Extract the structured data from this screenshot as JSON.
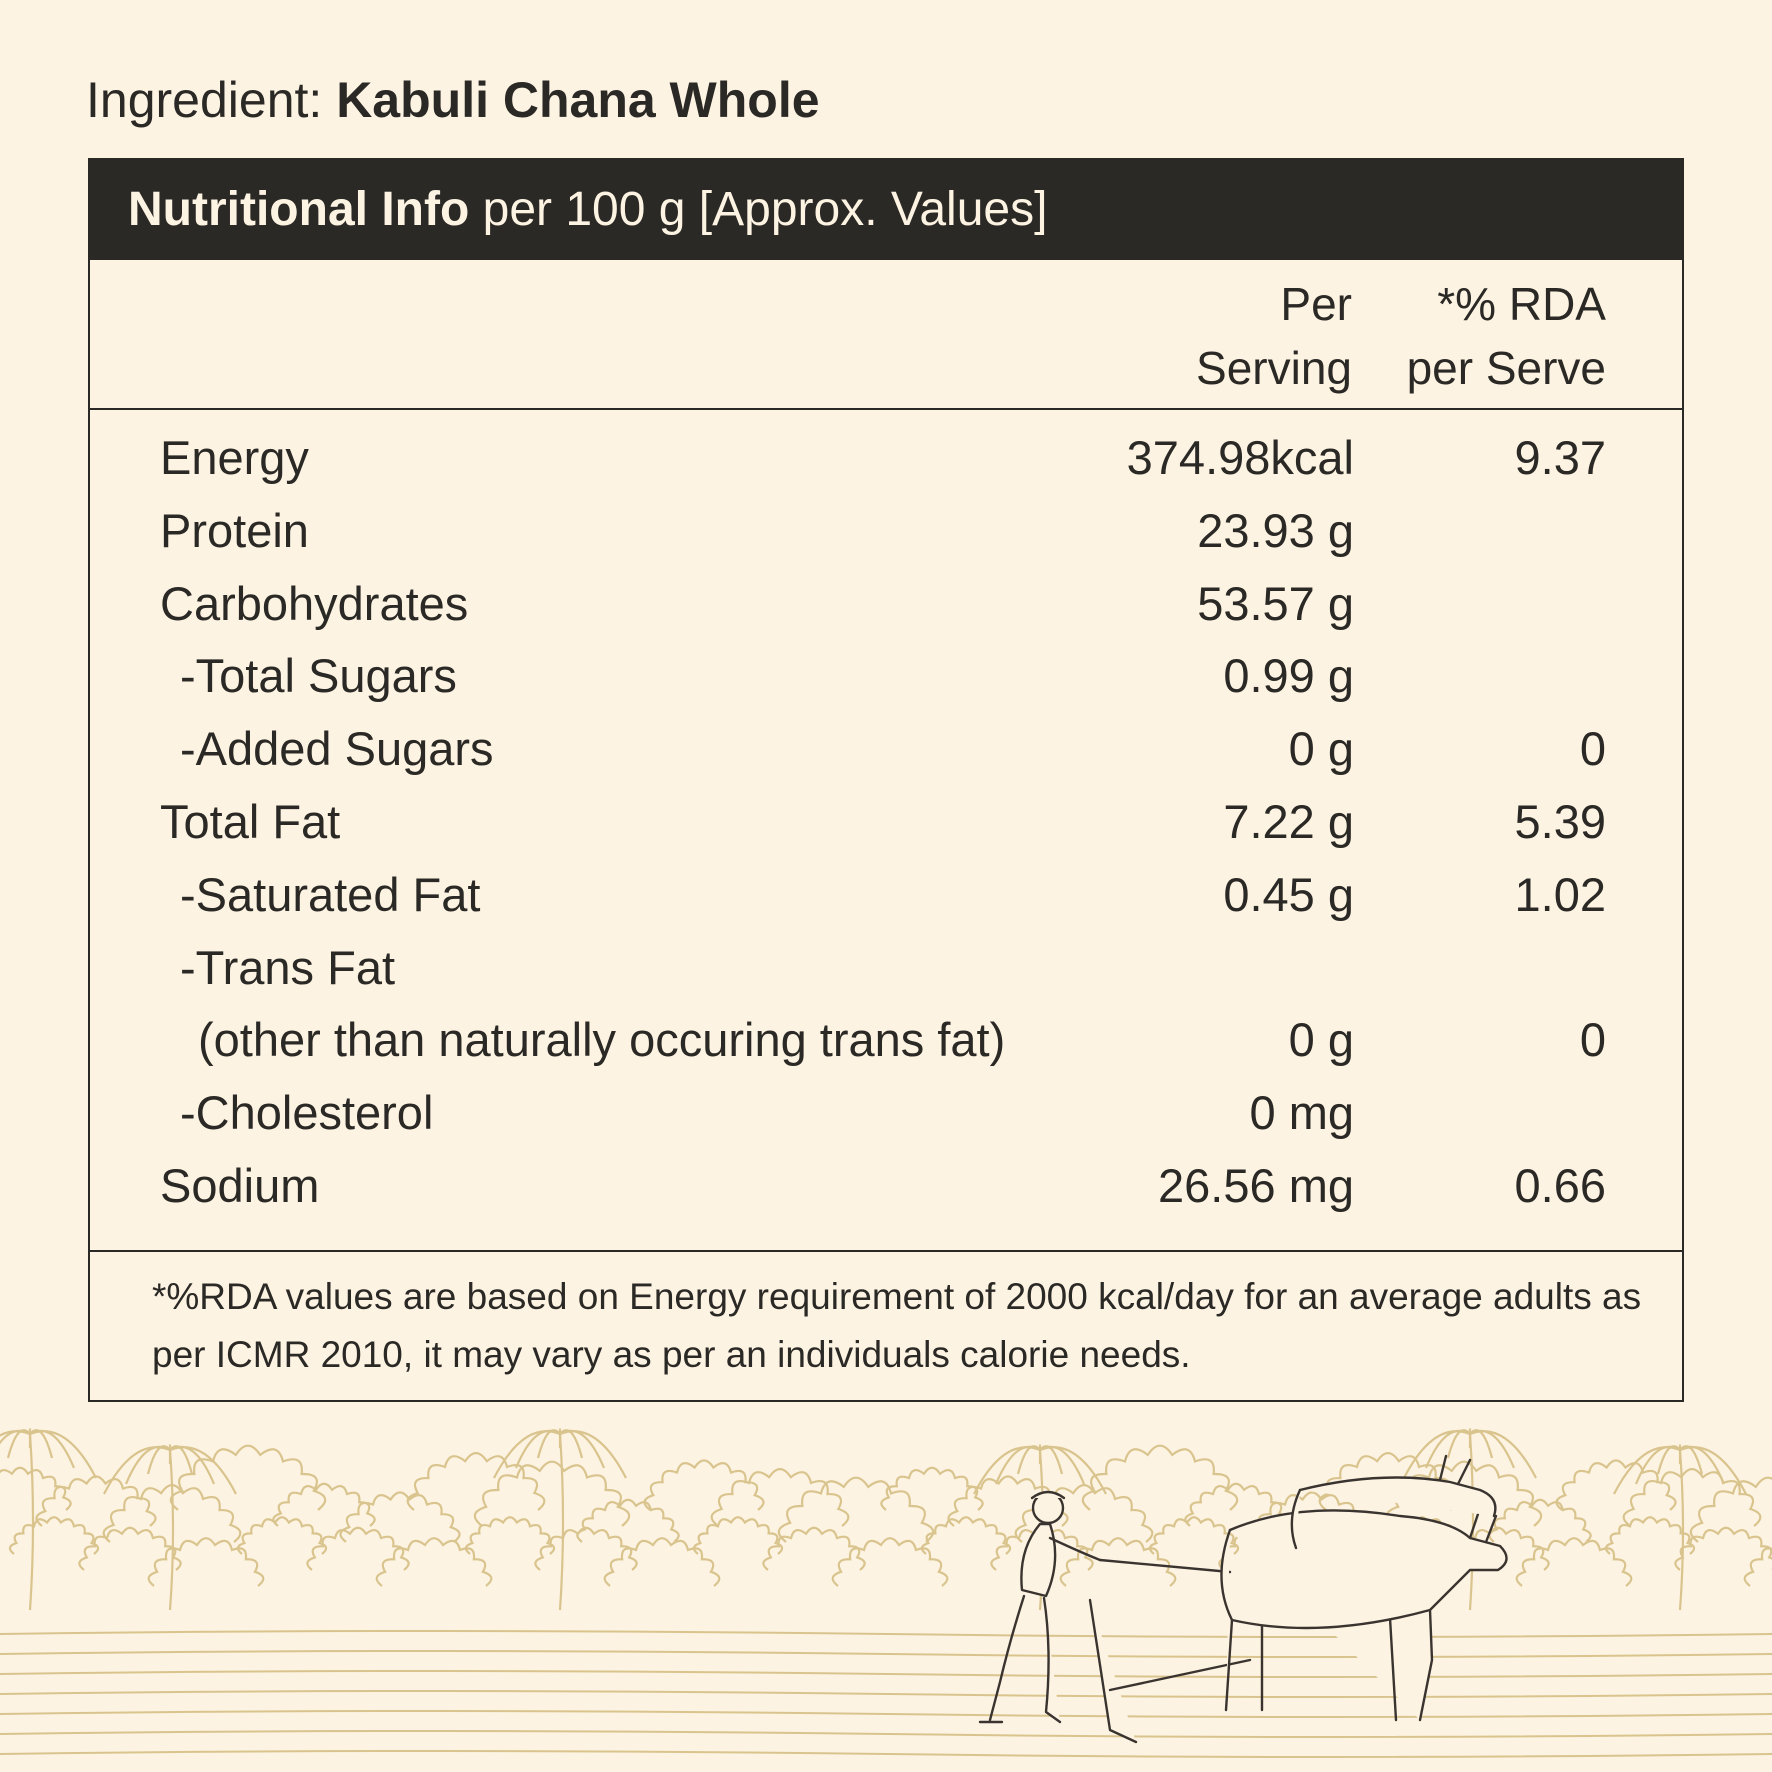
{
  "ingredient": {
    "label": "Ingredient:",
    "value": "Kabuli Chana Whole"
  },
  "panel": {
    "title_bold": "Nutritional Info",
    "title_rest": "per 100 g [Approx. Values]",
    "columns": {
      "per_serving_line1": "Per",
      "per_serving_line2": "Serving",
      "rda_line1": "*% RDA",
      "rda_line2": "per Serve"
    },
    "rows": [
      {
        "name": "Energy",
        "per": "374.98kcal",
        "rda": "9.37",
        "level": 0
      },
      {
        "name": "Protein",
        "per": "23.93 g",
        "rda": "",
        "level": 0
      },
      {
        "name": "Carbohydrates",
        "per": "53.57 g",
        "rda": "",
        "level": 0
      },
      {
        "name": "-Total Sugars",
        "per": "0.99 g",
        "rda": "",
        "level": 1
      },
      {
        "name": "-Added Sugars",
        "per": "0 g",
        "rda": "0",
        "level": 1
      },
      {
        "name": "Total Fat",
        "per": "7.22 g",
        "rda": "5.39",
        "level": 0
      },
      {
        "name": "-Saturated Fat",
        "per": "0.45 g",
        "rda": "1.02",
        "level": 1
      },
      {
        "name": "-Trans Fat",
        "per": "",
        "rda": "",
        "level": 1
      },
      {
        "name": "(other than naturally occuring trans fat)",
        "per": "0 g",
        "rda": "0",
        "level": 2
      },
      {
        "name": "-Cholesterol",
        "per": "0 mg",
        "rda": "",
        "level": 1
      },
      {
        "name": "Sodium",
        "per": "26.56 mg",
        "rda": "0.66",
        "level": 0
      }
    ],
    "footnote": "*%RDA values are based on Energy requirement of 2000 kcal/day for an average adults as per ICMR 2010, it may vary as per an individuals calorie needs."
  },
  "illustration": {
    "icon": "farmer-ploughing-with-oxen-illustration",
    "line_color": "#d9c48e",
    "ink_color": "#3a3430"
  }
}
